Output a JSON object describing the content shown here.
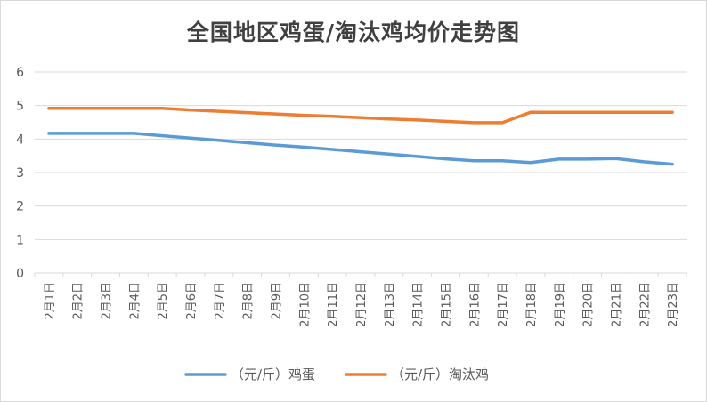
{
  "chart_data": {
    "type": "line",
    "title": "全国地区鸡蛋/淘汰鸡均价走势图",
    "xlabel": "",
    "ylabel": "",
    "categories": [
      "2月1日",
      "2月2日",
      "2月3日",
      "2月4日",
      "2月5日",
      "2月6日",
      "2月7日",
      "2月8日",
      "2月9日",
      "2月10日",
      "2月11日",
      "2月12日",
      "2月13日",
      "2月14日",
      "2月15日",
      "2月16日",
      "2月17日",
      "2月18日",
      "2月19日",
      "2月20日",
      "2月21日",
      "2月22日",
      "2月23日"
    ],
    "ylim": [
      0,
      6
    ],
    "yticks": [
      0,
      1,
      2,
      3,
      4,
      5,
      6
    ],
    "grid": true,
    "legend": "bottom",
    "series": [
      {
        "name": "（元/斤）鸡蛋",
        "color": "#5b9bd5",
        "values": [
          4.17,
          4.17,
          4.17,
          4.17,
          4.1,
          4.03,
          3.96,
          3.89,
          3.82,
          3.76,
          3.69,
          3.62,
          3.55,
          3.48,
          3.41,
          3.35,
          3.35,
          3.3,
          3.4,
          3.4,
          3.42,
          3.32,
          3.25
        ]
      },
      {
        "name": "（元/斤）淘汰鸡",
        "color": "#ed7d31",
        "values": [
          4.92,
          4.92,
          4.92,
          4.92,
          4.92,
          4.87,
          4.83,
          4.79,
          4.75,
          4.71,
          4.68,
          4.64,
          4.6,
          4.57,
          4.53,
          4.49,
          4.49,
          4.8,
          4.8,
          4.8,
          4.8,
          4.8,
          4.8
        ]
      }
    ]
  }
}
